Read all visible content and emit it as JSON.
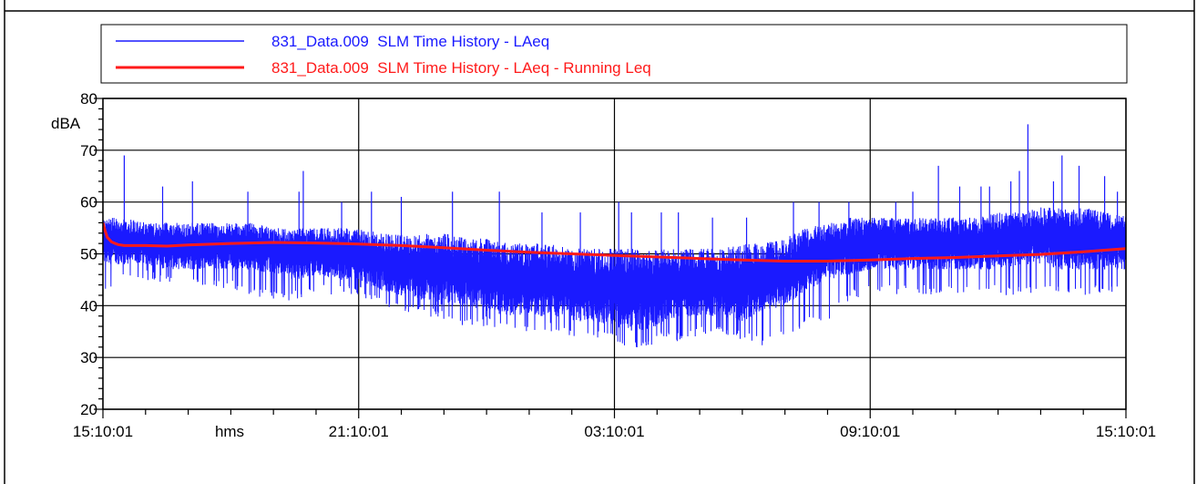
{
  "chart_data": {
    "type": "line",
    "title": "",
    "xlabel": "",
    "ylabel": "dBA",
    "x_unit_label": "hms",
    "ylim": [
      20,
      80
    ],
    "y_ticks": [
      20,
      30,
      40,
      50,
      60,
      70,
      80
    ],
    "y_tick_labels": [
      "20",
      "30",
      "40",
      "50",
      "60",
      "70",
      "80"
    ],
    "x_tick_labels": [
      "15:10:01",
      "21:10:01",
      "03:10:01",
      "09:10:01",
      "15:10:01"
    ],
    "x_hours_from_start_range": [
      0,
      24
    ],
    "grid": true,
    "legend_position": "top",
    "series": [
      {
        "name": "831_Data.009  SLM Time History - LAeq",
        "color": "#1a1aff",
        "envelope": {
          "t": [
            0,
            0.5,
            1,
            1.5,
            2,
            2.5,
            3,
            3.5,
            4,
            4.5,
            5,
            5.5,
            6,
            6.5,
            7,
            7.5,
            8,
            8.5,
            9,
            9.5,
            10,
            10.5,
            11,
            11.5,
            12,
            12.5,
            13,
            13.5,
            14,
            14.5,
            15,
            15.5,
            16,
            16.5,
            17,
            17.5,
            18,
            18.5,
            19,
            19.5,
            20,
            20.5,
            21,
            21.5,
            22,
            22.5,
            23,
            23.5,
            24
          ],
          "low": [
            42,
            45,
            45,
            44,
            44,
            44,
            43,
            42,
            41,
            41,
            42,
            42,
            42,
            40,
            38,
            38,
            37,
            36,
            36,
            35,
            35,
            35,
            34,
            34,
            33,
            31,
            33,
            33,
            34,
            34,
            33,
            32,
            34,
            36,
            37,
            41,
            42,
            42,
            42,
            42,
            42,
            42,
            42,
            42,
            42,
            42,
            42,
            42,
            42
          ],
          "typical": [
            [
              48,
              57
            ],
            [
              48,
              57
            ],
            [
              48,
              56
            ],
            [
              47,
              56
            ],
            [
              47,
              56
            ],
            [
              47,
              56
            ],
            [
              47,
              56
            ],
            [
              47,
              56
            ],
            [
              46,
              55
            ],
            [
              45,
              55
            ],
            [
              46,
              55
            ],
            [
              45,
              55
            ],
            [
              45,
              55
            ],
            [
              43,
              54
            ],
            [
              42,
              54
            ],
            [
              41,
              54
            ],
            [
              40,
              54
            ],
            [
              40,
              53
            ],
            [
              39,
              53
            ],
            [
              38,
              52
            ],
            [
              38,
              52
            ],
            [
              38,
              52
            ],
            [
              37,
              51
            ],
            [
              37,
              51
            ],
            [
              36,
              51
            ],
            [
              35,
              51
            ],
            [
              36,
              51
            ],
            [
              38,
              51
            ],
            [
              38,
              51
            ],
            [
              38,
              51
            ],
            [
              37,
              52
            ],
            [
              39,
              52
            ],
            [
              40,
              53
            ],
            [
              43,
              55
            ],
            [
              45,
              56
            ],
            [
              46,
              57
            ],
            [
              47,
              57
            ],
            [
              47,
              57
            ],
            [
              47,
              57
            ],
            [
              47,
              57
            ],
            [
              47,
              57
            ],
            [
              47,
              57
            ],
            [
              47,
              58
            ],
            [
              48,
              58
            ],
            [
              48,
              59
            ],
            [
              47,
              59
            ],
            [
              47,
              59
            ],
            [
              47,
              58
            ],
            [
              47,
              58
            ]
          ],
          "spikes": [
            [
              0.5,
              69
            ],
            [
              1.4,
              63
            ],
            [
              2.1,
              64
            ],
            [
              3.4,
              62
            ],
            [
              4.6,
              62
            ],
            [
              4.7,
              66
            ],
            [
              5.6,
              60
            ],
            [
              6.3,
              62
            ],
            [
              7.0,
              61
            ],
            [
              8.2,
              62
            ],
            [
              9.3,
              62
            ],
            [
              10.3,
              58
            ],
            [
              11.2,
              58
            ],
            [
              12.1,
              60
            ],
            [
              12.4,
              58
            ],
            [
              13.1,
              58
            ],
            [
              13.5,
              58
            ],
            [
              14.3,
              57
            ],
            [
              15.1,
              57
            ],
            [
              16.2,
              60
            ],
            [
              16.8,
              60
            ],
            [
              17.5,
              60
            ],
            [
              18.6,
              60
            ],
            [
              19.0,
              62
            ],
            [
              19.6,
              67
            ],
            [
              20.1,
              63
            ],
            [
              20.6,
              63
            ],
            [
              20.8,
              63
            ],
            [
              21.3,
              64
            ],
            [
              21.5,
              66
            ],
            [
              21.7,
              75
            ],
            [
              22.3,
              64
            ],
            [
              22.5,
              69
            ],
            [
              22.9,
              67
            ],
            [
              23.5,
              65
            ],
            [
              23.8,
              62
            ]
          ]
        }
      },
      {
        "name": "831_Data.009  SLM Time History - LAeq - Running Leq",
        "color": "#ff1a1a",
        "x": [
          0,
          0.05,
          0.1,
          0.2,
          0.35,
          0.5,
          1,
          1.5,
          2,
          3,
          4,
          5,
          6,
          7,
          8,
          9,
          10,
          11,
          12,
          13,
          14,
          15,
          16,
          17,
          18,
          19,
          20,
          21,
          22,
          23,
          24
        ],
        "y": [
          56,
          54.5,
          53.2,
          52.3,
          51.8,
          51.6,
          51.6,
          51.5,
          51.7,
          52,
          52.2,
          52.1,
          51.9,
          51.6,
          51.2,
          50.7,
          50.3,
          50,
          49.7,
          49.4,
          49.1,
          48.8,
          48.6,
          48.6,
          48.8,
          49.1,
          49.3,
          49.6,
          49.9,
          50.4,
          51
        ]
      }
    ]
  }
}
